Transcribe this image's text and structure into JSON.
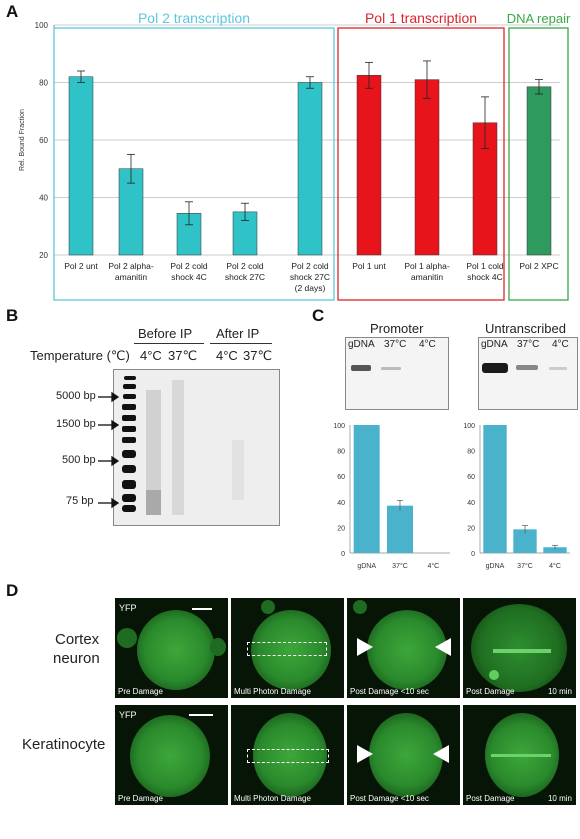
{
  "panels": {
    "a": "A",
    "b": "B",
    "c": "C",
    "d": "D"
  },
  "panelA": {
    "group_labels": [
      "Pol 2 transcription",
      "Pol 1 transcription",
      "DNA repair"
    ],
    "group_colors": [
      "#5bc8dc",
      "#d9262c",
      "#3aa847"
    ]
  },
  "chart_data": [
    {
      "type": "bar",
      "title": "",
      "ylabel": "Rel. Bound Fraction",
      "xlabel": "",
      "ylim": [
        20,
        100
      ],
      "yticks": [
        20,
        40,
        60,
        80,
        100
      ],
      "grid": true,
      "categories": [
        "Pol 2 unt",
        "Pol 2 alpha-amanitin",
        "Pol 2 cold shock 4C",
        "Pol 2 cold shock 27C",
        "Pol 2 cold shock 27C (2 days)",
        "Pol 1 unt",
        "Pol 1 alpha-amanitin",
        "Pol 1 cold shock 4C",
        "Pol 2 XPC"
      ],
      "category_lines": [
        [
          "Pol 2 unt"
        ],
        [
          "Pol 2 alpha-",
          "amanitin"
        ],
        [
          "Pol 2 cold",
          "shock 4C"
        ],
        [
          "Pol 2 cold",
          "shock 27C"
        ],
        [
          "Pol 2 cold",
          "shock 27C",
          "(2 days)"
        ],
        [
          "Pol 1 unt"
        ],
        [
          "Pol 1 alpha-",
          "amanitin"
        ],
        [
          "Pol 1 cold",
          "shock 4C"
        ],
        [
          "Pol 2 XPC"
        ]
      ],
      "values": [
        82,
        50,
        34.5,
        35,
        80,
        82.5,
        81,
        66,
        78.5
      ],
      "errors": [
        2,
        5,
        4,
        3,
        2,
        4.5,
        6.5,
        9,
        2.5
      ],
      "colors": [
        "#2fc2c6",
        "#2fc2c6",
        "#2fc2c6",
        "#2fc2c6",
        "#2fc2c6",
        "#e8141c",
        "#e8141c",
        "#e8141c",
        "#2e9a5e"
      ]
    },
    {
      "type": "bar",
      "title": "",
      "xlabel": "",
      "ylabel": "",
      "ylim": [
        0,
        100
      ],
      "yticks": [
        0,
        20,
        40,
        60,
        80,
        100
      ],
      "categories": [
        "gDNA",
        "37°C",
        "4°C"
      ],
      "values": [
        100,
        37,
        0
      ],
      "errors": [
        0,
        4,
        0
      ],
      "color": "#4ab3cb"
    },
    {
      "type": "bar",
      "title": "",
      "xlabel": "",
      "ylabel": "",
      "ylim": [
        0,
        100
      ],
      "yticks": [
        0,
        20,
        40,
        60,
        80,
        100
      ],
      "categories": [
        "gDNA",
        "37°C",
        "4°C"
      ],
      "values": [
        100,
        18.5,
        4.5
      ],
      "errors": [
        0,
        3,
        1.5
      ],
      "color": "#4ab3cb"
    }
  ],
  "panelB": {
    "before_ip": "Before IP",
    "after_ip": "After IP",
    "temperature_label": "Temperature (℃)",
    "temps": [
      "4°C",
      "37℃",
      "4°C",
      "37℃"
    ],
    "markers": [
      "5000 bp",
      "1500 bp",
      "500 bp",
      "75 bp"
    ]
  },
  "panelC": {
    "titles": [
      "Promoter",
      "Untranscribed"
    ],
    "gel_lane_labels": [
      "gDNA",
      "37°C",
      "4°C"
    ]
  },
  "panelD": {
    "row_labels": [
      [
        "Cortex",
        "neuron"
      ],
      [
        "Keratinocyte"
      ]
    ],
    "yfp": "YFP",
    "frame_labels": [
      "Pre Damage",
      "Multi Photon Damage",
      "Post Damage  <10 sec",
      "Post Damage"
    ],
    "frame_time": "10 min"
  }
}
